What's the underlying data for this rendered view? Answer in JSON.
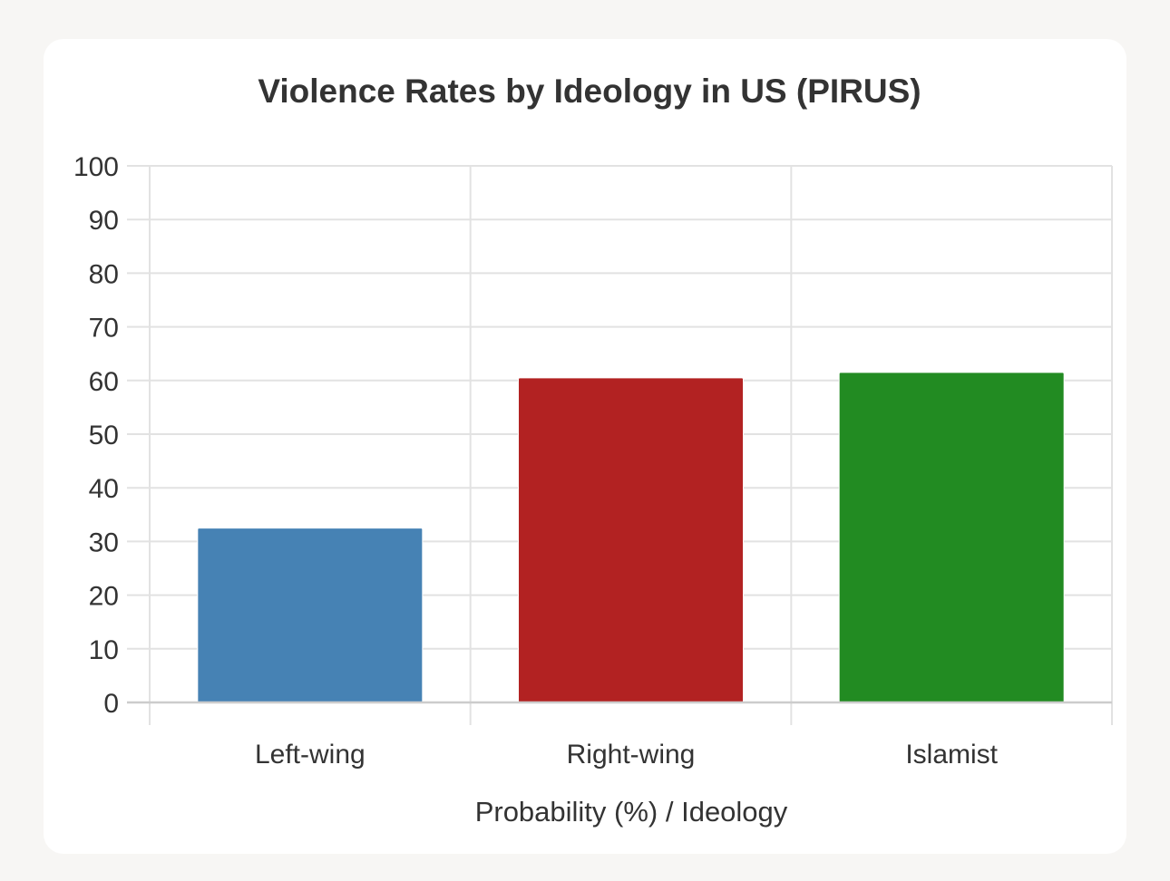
{
  "chart_data": {
    "type": "bar",
    "title": "Violence Rates by Ideology in US (PIRUS)",
    "xlabel": "Probability (%) / Ideology",
    "ylabel": "",
    "ylim": [
      0,
      100
    ],
    "yticks": [
      "0",
      "10",
      "20",
      "30",
      "40",
      "50",
      "60",
      "70",
      "80",
      "90",
      "100"
    ],
    "categories": [
      "Left-wing",
      "Right-wing",
      "Islamist"
    ],
    "values": [
      32.5,
      60.5,
      61.5
    ],
    "colors": [
      "#4682b4",
      "#b22222",
      "#228b22"
    ],
    "grid": true,
    "legend": "none"
  }
}
